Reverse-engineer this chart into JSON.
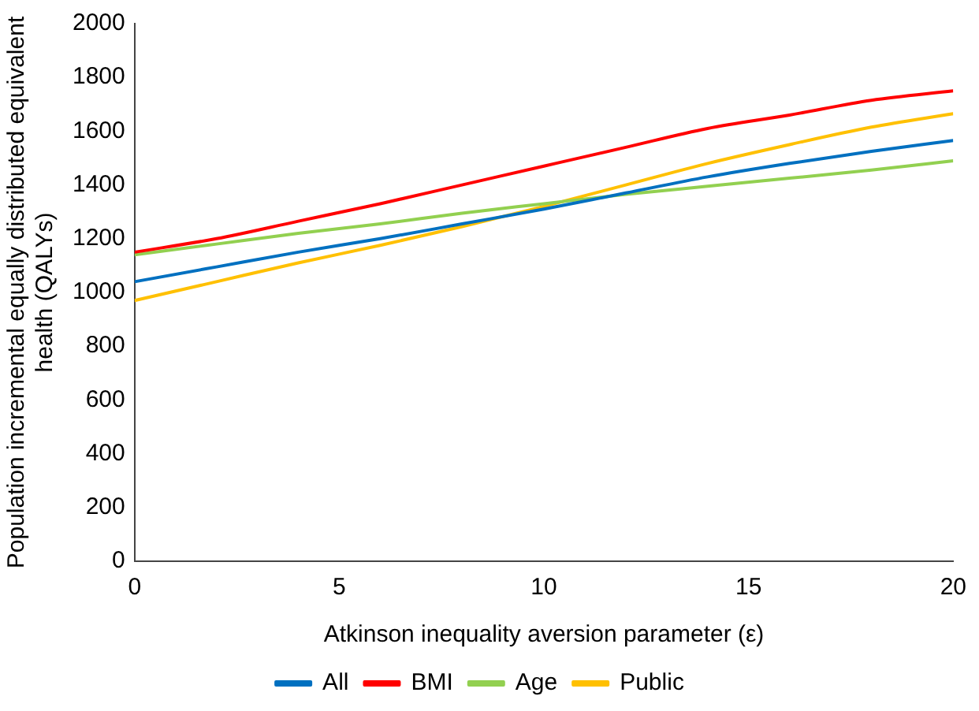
{
  "chart_data": {
    "type": "line",
    "xlabel": "Atkinson inequality aversion parameter (ε)",
    "ylabel": "Population incremental equally distributed equivalent health (QALYs)",
    "x": [
      0,
      2,
      4,
      6,
      8,
      10,
      12,
      14,
      16,
      18,
      20
    ],
    "series": [
      {
        "name": "All",
        "color": "#0070c0",
        "values": [
          1040,
          1095,
          1150,
          1200,
          1255,
          1310,
          1370,
          1430,
          1480,
          1525,
          1565
        ]
      },
      {
        "name": "BMI",
        "color": "#ff0000",
        "values": [
          1150,
          1200,
          1265,
          1330,
          1400,
          1470,
          1540,
          1610,
          1660,
          1715,
          1750
        ]
      },
      {
        "name": "Age",
        "color": "#92d050",
        "values": [
          1140,
          1180,
          1220,
          1255,
          1295,
          1330,
          1365,
          1395,
          1425,
          1455,
          1490
        ]
      },
      {
        "name": "Public",
        "color": "#ffc000",
        "values": [
          970,
          1040,
          1110,
          1175,
          1245,
          1320,
          1400,
          1480,
          1550,
          1615,
          1665
        ]
      }
    ],
    "xlim": [
      0,
      20
    ],
    "xticks": [
      0,
      5,
      10,
      15,
      20
    ],
    "ylim": [
      0,
      2000
    ],
    "yticks": [
      0,
      200,
      400,
      600,
      800,
      1000,
      1200,
      1400,
      1600,
      1800,
      2000
    ],
    "grid": false,
    "legend": "bottom",
    "marker": "none",
    "line_style": "solid"
  }
}
